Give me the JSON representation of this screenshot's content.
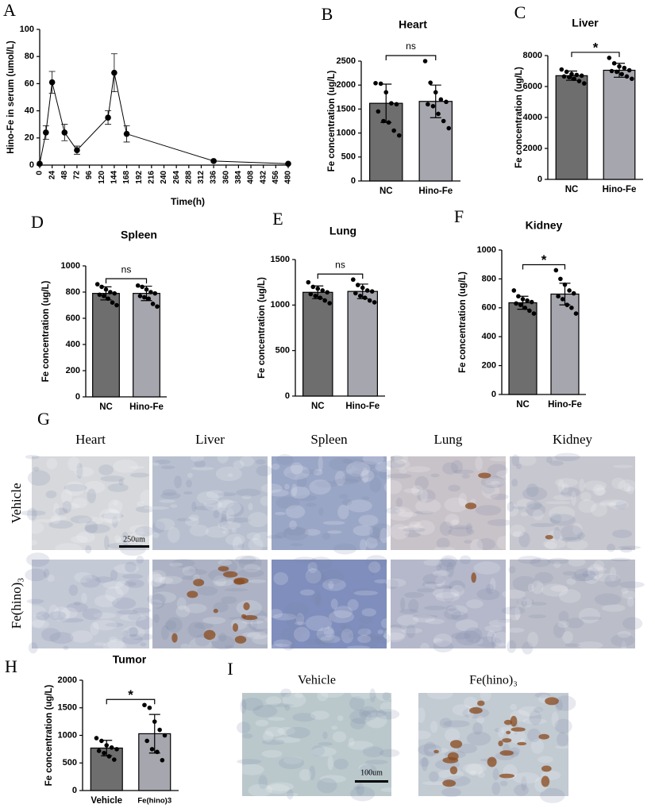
{
  "chart_data": [
    {
      "type": "line",
      "label": "A",
      "x_label": "Time(h)",
      "y_label": "Hino-Fe in serum (umol/L)",
      "x": [
        0,
        12,
        24,
        48,
        72,
        132,
        144,
        168,
        336,
        480
      ],
      "values": [
        1,
        24,
        61,
        24,
        11,
        35,
        68,
        23,
        3,
        1
      ],
      "errors": [
        0,
        5,
        8,
        6,
        3,
        5,
        14,
        6,
        0,
        0
      ],
      "color": "#000000",
      "xlim": [
        0,
        480
      ],
      "xticks": [
        0,
        24,
        48,
        72,
        96,
        120,
        144,
        168,
        192,
        216,
        240,
        264,
        288,
        312,
        336,
        360,
        384,
        408,
        432,
        456,
        480
      ],
      "ylim": [
        0,
        100
      ],
      "yticks": [
        0,
        20,
        40,
        60,
        80,
        100
      ]
    },
    {
      "type": "bar",
      "label": "B",
      "title": "Heart",
      "y_label": "Fe concentration (ug/L)",
      "annotation": "ns",
      "categories": [
        "NC",
        "Hino-Fe"
      ],
      "values": [
        1620,
        1660
      ],
      "errors": [
        400,
        340
      ],
      "colors": [
        "#6e6e6e",
        "#a6a6ae"
      ],
      "points": [
        [
          2040,
          2030,
          1850,
          1620,
          1600,
          1450,
          1250,
          1220,
          1050,
          950
        ],
        [
          2500,
          2050,
          1850,
          1700,
          1650,
          1600,
          1560,
          1400,
          1250,
          1100
        ]
      ],
      "ylim": [
        0,
        2500
      ],
      "yticks": [
        0,
        500,
        1000,
        1500,
        2000,
        2500
      ]
    },
    {
      "type": "bar",
      "label": "C",
      "title": "Liver",
      "y_label": "Fe concentration (ug/L)",
      "annotation": "*",
      "categories": [
        "NC",
        "Hino-Fe"
      ],
      "values": [
        6700,
        7050
      ],
      "errors": [
        300,
        450
      ],
      "colors": [
        "#6e6e6e",
        "#a6a6ae"
      ],
      "points": [
        [
          7100,
          6950,
          6800,
          6750,
          6700,
          6650,
          6600,
          6500,
          6350,
          6200
        ],
        [
          7850,
          7500,
          7300,
          7200,
          7050,
          7000,
          6950,
          6800,
          6650,
          6500
        ]
      ],
      "ylim": [
        0,
        8000
      ],
      "yticks": [
        0,
        2000,
        4000,
        6000,
        8000
      ]
    },
    {
      "type": "bar",
      "label": "D",
      "title": "Spleen",
      "y_label": "Fe concentration (ug/L)",
      "annotation": "ns",
      "categories": [
        "NC",
        "Hino-Fe"
      ],
      "values": [
        790,
        790
      ],
      "errors": [
        50,
        55
      ],
      "colors": [
        "#6e6e6e",
        "#a6a6ae"
      ],
      "points": [
        [
          860,
          840,
          820,
          800,
          790,
          780,
          770,
          750,
          720,
          700
        ],
        [
          850,
          840,
          820,
          800,
          790,
          770,
          760,
          750,
          710,
          690
        ]
      ],
      "ylim": [
        0,
        1000
      ],
      "yticks": [
        0,
        200,
        400,
        600,
        800,
        1000
      ]
    },
    {
      "type": "bar",
      "label": "E",
      "title": "Lung",
      "y_label": "Fe concentration (ug/L)",
      "annotation": "ns",
      "categories": [
        "NC",
        "Hino-Fe"
      ],
      "values": [
        1140,
        1150
      ],
      "errors": [
        70,
        80
      ],
      "colors": [
        "#6e6e6e",
        "#a6a6ae"
      ],
      "points": [
        [
          1250,
          1200,
          1180,
          1160,
          1140,
          1120,
          1100,
          1080,
          1050,
          1020
        ],
        [
          1280,
          1220,
          1190,
          1160,
          1150,
          1130,
          1100,
          1080,
          1050,
          1030
        ]
      ],
      "ylim": [
        0,
        1500
      ],
      "yticks": [
        0,
        500,
        1000,
        1500
      ]
    },
    {
      "type": "bar",
      "label": "F",
      "title": "Kidney",
      "y_label": "Fe concentration (ug/L)",
      "annotation": "*",
      "categories": [
        "NC",
        "Hino-Fe"
      ],
      "values": [
        635,
        695
      ],
      "errors": [
        45,
        75
      ],
      "colors": [
        "#6e6e6e",
        "#a6a6ae"
      ],
      "points": [
        [
          720,
          680,
          660,
          650,
          640,
          630,
          620,
          600,
          580,
          560
        ],
        [
          860,
          800,
          760,
          720,
          700,
          680,
          660,
          620,
          600,
          560
        ]
      ],
      "ylim": [
        0,
        1000
      ],
      "yticks": [
        0,
        200,
        400,
        600,
        800,
        1000
      ]
    },
    {
      "type": "bar",
      "label": "H",
      "title": "Tumor",
      "y_label": "Fe concentration (ug/L)",
      "annotation": "*",
      "categories": [
        "Vehicle",
        "Fe(hino)3"
      ],
      "values": [
        770,
        1030
      ],
      "errors": [
        140,
        350
      ],
      "colors": [
        "#6e6e6e",
        "#a6a6ae"
      ],
      "points": [
        [
          950,
          900,
          820,
          780,
          750,
          720,
          680,
          620,
          560
        ],
        [
          1550,
          1500,
          1250,
          1100,
          1000,
          900,
          750,
          700,
          550
        ]
      ],
      "ylim": [
        0,
        2000
      ],
      "yticks": [
        0,
        500,
        1000,
        1500,
        2000
      ]
    }
  ],
  "images_g": {
    "label": "G",
    "columns": [
      "Heart",
      "Liver",
      "Spleen",
      "Lung",
      "Kidney"
    ],
    "rows": [
      "Vehicle",
      "Fe(hino)₃"
    ],
    "scale_bar": "250um"
  },
  "images_i": {
    "label": "I",
    "columns": [
      "Vehicle",
      "Fe(hino)₃"
    ],
    "scale_bar": "100um"
  }
}
